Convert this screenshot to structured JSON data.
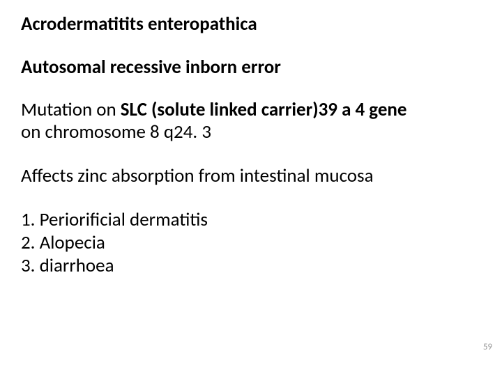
{
  "title": "Acrodermatitits enteropathica",
  "subtitle": "Autosomal recessive inborn error",
  "mutation_line1_pre": "Mutation on ",
  "mutation_line1_bold": "SLC (solute linked carrier)39 a 4 gene",
  "mutation_line2": "on chromosome 8 q24. 3",
  "effect": "Affects zinc absorption from intestinal mucosa",
  "item1": "1. Periorificial dermatitis",
  "item2": "2. Alopecia",
  "item3": "3. diarrhoea",
  "page_number": "59",
  "colors": {
    "background": "#ffffff",
    "text": "#000000",
    "page_num": "#9a9a9a"
  },
  "fontsizes": {
    "body": 27,
    "page_num": 13
  }
}
